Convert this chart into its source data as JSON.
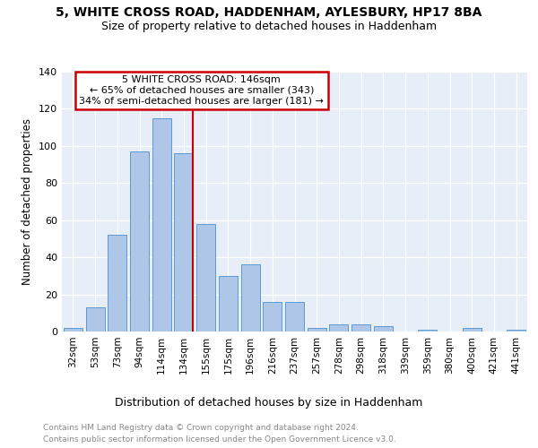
{
  "title": "5, WHITE CROSS ROAD, HADDENHAM, AYLESBURY, HP17 8BA",
  "subtitle": "Size of property relative to detached houses in Haddenham",
  "xlabel": "Distribution of detached houses by size in Haddenham",
  "ylabel": "Number of detached properties",
  "categories": [
    "32sqm",
    "53sqm",
    "73sqm",
    "94sqm",
    "114sqm",
    "134sqm",
    "155sqm",
    "175sqm",
    "196sqm",
    "216sqm",
    "237sqm",
    "257sqm",
    "278sqm",
    "298sqm",
    "318sqm",
    "339sqm",
    "359sqm",
    "380sqm",
    "400sqm",
    "421sqm",
    "441sqm"
  ],
  "values": [
    2,
    13,
    52,
    97,
    115,
    96,
    58,
    30,
    36,
    16,
    16,
    2,
    4,
    4,
    3,
    0,
    1,
    0,
    2,
    0,
    1
  ],
  "bar_color": "#aec6e8",
  "bar_edge_color": "#5b9bd5",
  "property_label": "5 WHITE CROSS ROAD: 146sqm",
  "annotation_line1": "← 65% of detached houses are smaller (343)",
  "annotation_line2": "34% of semi-detached houses are larger (181) →",
  "vline_color": "#cc0000",
  "annotation_box_edgecolor": "#cc0000",
  "bg_color": "#e8eef8",
  "ylim": [
    0,
    140
  ],
  "yticks": [
    0,
    20,
    40,
    60,
    80,
    100,
    120,
    140
  ],
  "footer_line1": "Contains HM Land Registry data © Crown copyright and database right 2024.",
  "footer_line2": "Contains public sector information licensed under the Open Government Licence v3.0."
}
